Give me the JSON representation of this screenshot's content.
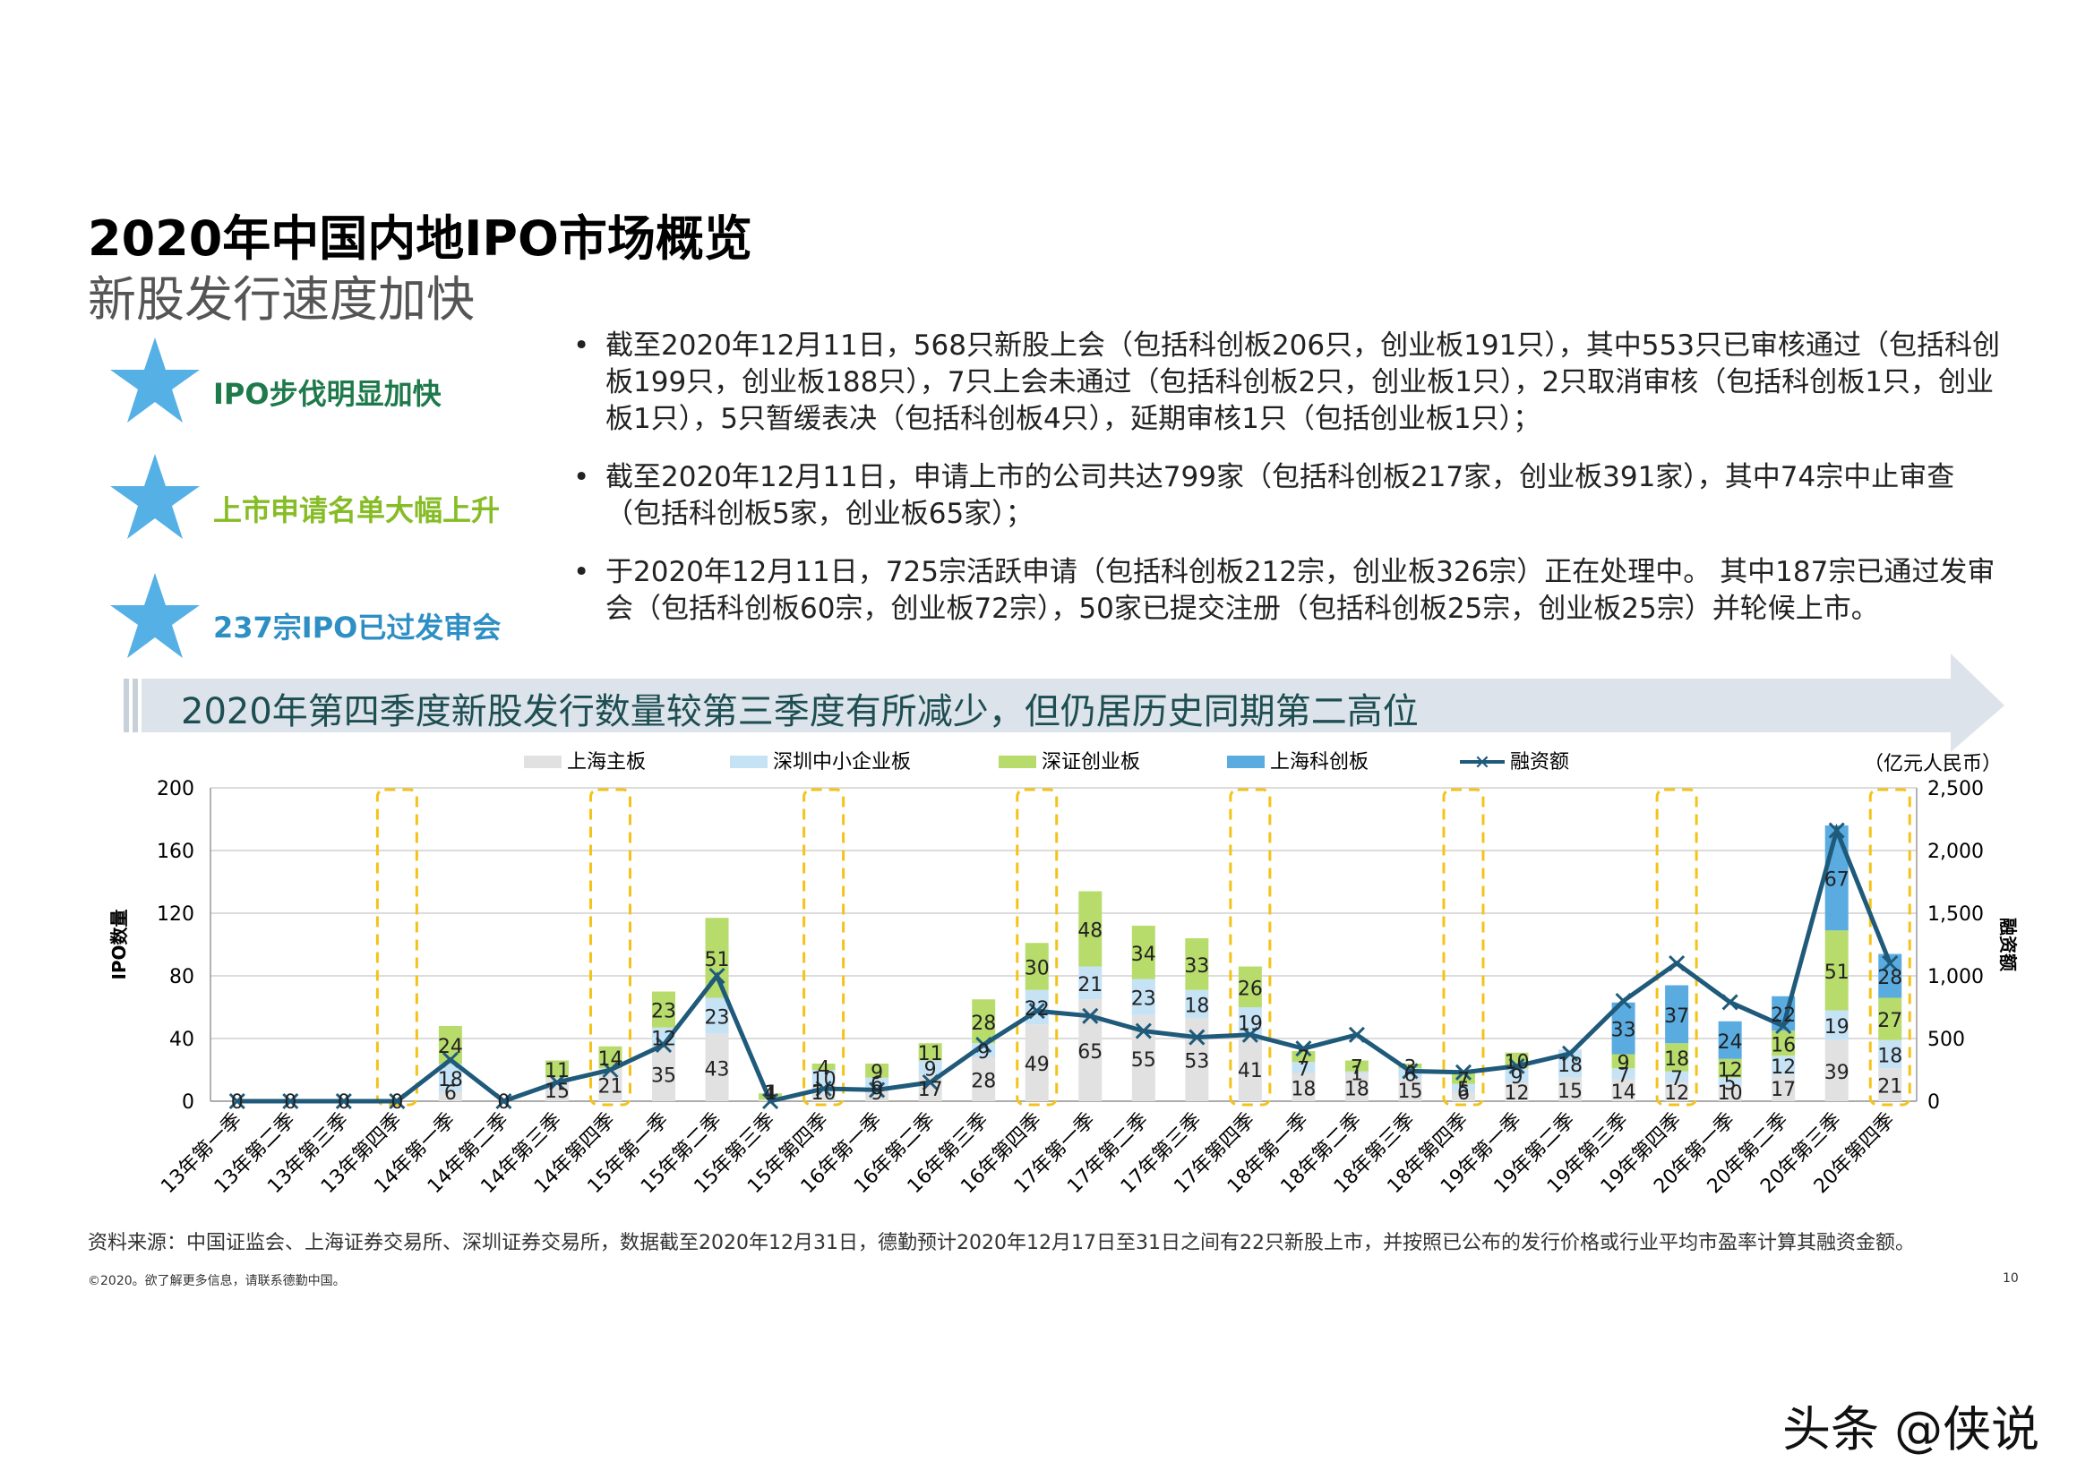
{
  "header": {
    "title": "2020年中国内地IPO市场概览",
    "subtitle": "新股发行速度加快"
  },
  "highlights": [
    {
      "label": "IPO步伐明显加快",
      "color": "#1e7a4b"
    },
    {
      "label": "上市申请名单大幅上升",
      "color": "#86bc25"
    },
    {
      "label": "237宗IPO已过发审会",
      "color": "#2e8fc4"
    }
  ],
  "bullets": [
    "截至2020年12月11日，568只新股上会（包括科创板206只，创业板191只），其中553只已审核通过（包括科创板199只，创业板188只），7只上会未通过（包括科创板2只，创业板1只），2只取消审核（包括科创板1只，创业板1只），5只暂缓表决（包括科创板4只），延期审核1只（包括创业板1只）；",
    "截至2020年12月11日，申请上市的公司共达799家（包括科创板217家，创业板391家），其中74宗中止审查（包括科创板5家，创业板65家）；",
    "于2020年12月11日，725宗活跃申请（包括科创板212宗，创业板326宗）正在处理中。 其中187宗已通过发审会（包括科创板60宗，创业板72宗），50家已提交注册（包括科创板25宗，创业板25宗）并轮候上市。"
  ],
  "banner": "2020年第四季度新股发行数量较第三季度有所减少，但仍居历史同期第二高位",
  "colors": {
    "star": "#55b0e6",
    "sh_main": "#e1e1e1",
    "sz_sme": "#c6e2f5",
    "sz_chinext": "#b8dc6c",
    "sh_star": "#5aace0",
    "line": "#1f5a7a",
    "highlight_box": "#f3c319",
    "banner": "#dde3ea"
  },
  "chart_data": {
    "type": "bar",
    "stacked": true,
    "categories": [
      "13年第一季",
      "13年第二季",
      "13年第三季",
      "13年第四季",
      "14年第一季",
      "14年第二季",
      "14年第三季",
      "14年第四季",
      "15年第一季",
      "15年第二季",
      "15年第三季",
      "15年第四季",
      "16年第一季",
      "16年第二季",
      "16年第三季",
      "16年第四季",
      "17年第一季",
      "17年第二季",
      "17年第三季",
      "17年第四季",
      "18年第一季",
      "18年第二季",
      "18年第三季",
      "18年第四季",
      "19年第一季",
      "19年第二季",
      "19年第三季",
      "19年第四季",
      "20年第一季",
      "20年第二季",
      "20年第三季",
      "20年第四季"
    ],
    "series": [
      {
        "name": "上海主板",
        "values": [
          0,
          0,
          0,
          0,
          6,
          0,
          15,
          21,
          35,
          43,
          1,
          10,
          9,
          17,
          28,
          49,
          65,
          55,
          53,
          41,
          18,
          18,
          15,
          6,
          12,
          15,
          14,
          12,
          10,
          17,
          39,
          21
        ]
      },
      {
        "name": "深圳中小企业板",
        "values": [
          0,
          0,
          0,
          0,
          18,
          0,
          0,
          0,
          12,
          23,
          0,
          10,
          6,
          9,
          9,
          22,
          21,
          23,
          18,
          19,
          7,
          1,
          6,
          5,
          9,
          18,
          7,
          7,
          5,
          12,
          19,
          18
        ]
      },
      {
        "name": "深证创业板",
        "values": [
          0,
          0,
          0,
          0,
          24,
          0,
          11,
          14,
          23,
          51,
          4,
          4,
          9,
          11,
          28,
          30,
          48,
          34,
          33,
          26,
          7,
          7,
          3,
          7,
          10,
          0,
          9,
          18,
          12,
          16,
          51,
          27
        ]
      },
      {
        "name": "上海科创板",
        "values": [
          0,
          0,
          0,
          0,
          0,
          0,
          0,
          0,
          0,
          0,
          0,
          0,
          0,
          0,
          0,
          0,
          0,
          0,
          0,
          0,
          0,
          0,
          0,
          0,
          0,
          0,
          33,
          37,
          24,
          22,
          67,
          28
        ]
      }
    ],
    "line_series": {
      "name": "融资额",
      "values": [
        0,
        0,
        0,
        0,
        330,
        0,
        150,
        250,
        450,
        1000,
        0,
        100,
        90,
        150,
        450,
        720,
        680,
        560,
        510,
        530,
        420,
        530,
        240,
        230,
        280,
        380,
        800,
        1100,
        790,
        600,
        2160,
        1100
      ]
    },
    "highlight_categories": [
      "13年第四季",
      "14年第四季",
      "15年第四季",
      "16年第四季",
      "17年第四季",
      "18年第四季",
      "19年第四季",
      "20年第四季"
    ],
    "y_left": {
      "label": "IPO数量",
      "range": [
        0,
        200
      ],
      "ticks": [
        "0",
        "40",
        "80",
        "120",
        "160",
        "200"
      ]
    },
    "y_right": {
      "label": "融资额",
      "unit": "（亿元人民币）",
      "range": [
        0,
        2500
      ],
      "ticks": [
        "0",
        "500",
        "1,000",
        "1,500",
        "2,000",
        "2,500"
      ]
    },
    "grid": true,
    "legend": "top"
  },
  "footer": {
    "source": "资料来源：中国证监会、上海证券交易所、深圳证券交易所，数据截至2020年12月31日，德勤预计2020年12月17日至31日之间有22只新股上市，并按照已公布的发行价格或行业平均市盈率计算其融资金额。",
    "copyright": "©2020。欲了解更多信息，请联系德勤中国。",
    "page": "10"
  },
  "watermark": "头条 @侠说"
}
